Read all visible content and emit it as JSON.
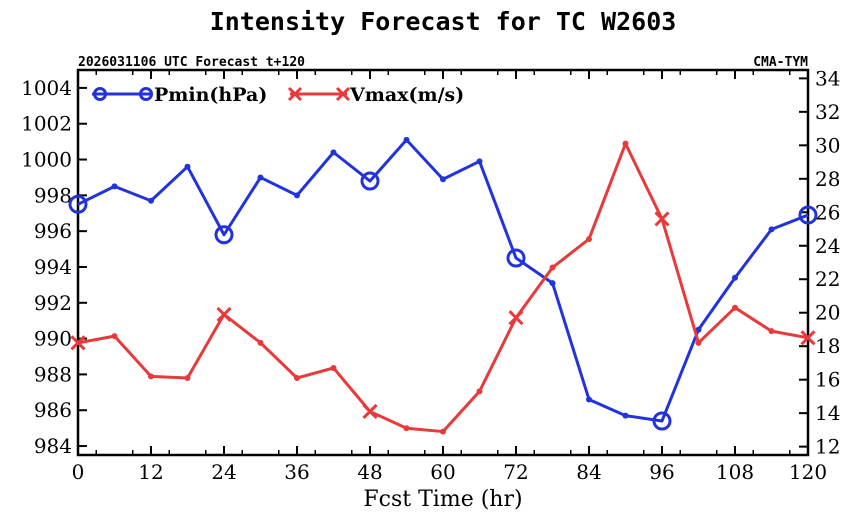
{
  "chart_data": {
    "type": "line",
    "title": "Intensity Forecast for TC W2603",
    "subtitle_left": "2026031106 UTC Forecast t+120",
    "subtitle_right": "CMA-TYM",
    "xlabel": "Fcst Time (hr)",
    "xlim": [
      0,
      120
    ],
    "xticks": [
      0,
      12,
      24,
      36,
      48,
      60,
      72,
      84,
      96,
      108,
      120
    ],
    "x": [
      0,
      6,
      12,
      18,
      24,
      30,
      36,
      42,
      48,
      54,
      60,
      66,
      72,
      78,
      84,
      90,
      96,
      102,
      108,
      114,
      120
    ],
    "left_axis": {
      "ylim": [
        983.5,
        1005
      ],
      "ticks": [
        984,
        986,
        988,
        990,
        992,
        994,
        996,
        998,
        1000,
        1002,
        1004
      ]
    },
    "right_axis": {
      "ylim": [
        11.5,
        34.5
      ],
      "ticks": [
        12,
        14,
        16,
        18,
        20,
        22,
        24,
        26,
        28,
        30,
        32,
        34
      ]
    },
    "series": [
      {
        "name": "Pmin(hPa)",
        "axis": "left",
        "color": "#2233dd",
        "marker": "circle",
        "values": [
          997.5,
          998.5,
          997.7,
          999.6,
          995.8,
          999.0,
          998.0,
          1000.4,
          998.8,
          1001.1,
          998.9,
          999.9,
          994.5,
          993.1,
          986.6,
          985.7,
          985.4,
          990.5,
          993.4,
          996.1,
          996.9
        ]
      },
      {
        "name": "Vmax(m/s)",
        "axis": "right",
        "color": "#e83a3a",
        "marker": "x",
        "values": [
          18.2,
          18.6,
          16.2,
          16.1,
          19.9,
          18.2,
          16.1,
          16.7,
          14.1,
          13.1,
          12.9,
          15.3,
          19.7,
          22.7,
          24.4,
          30.1,
          25.6,
          18.2,
          20.3,
          18.9,
          18.5
        ]
      }
    ]
  }
}
